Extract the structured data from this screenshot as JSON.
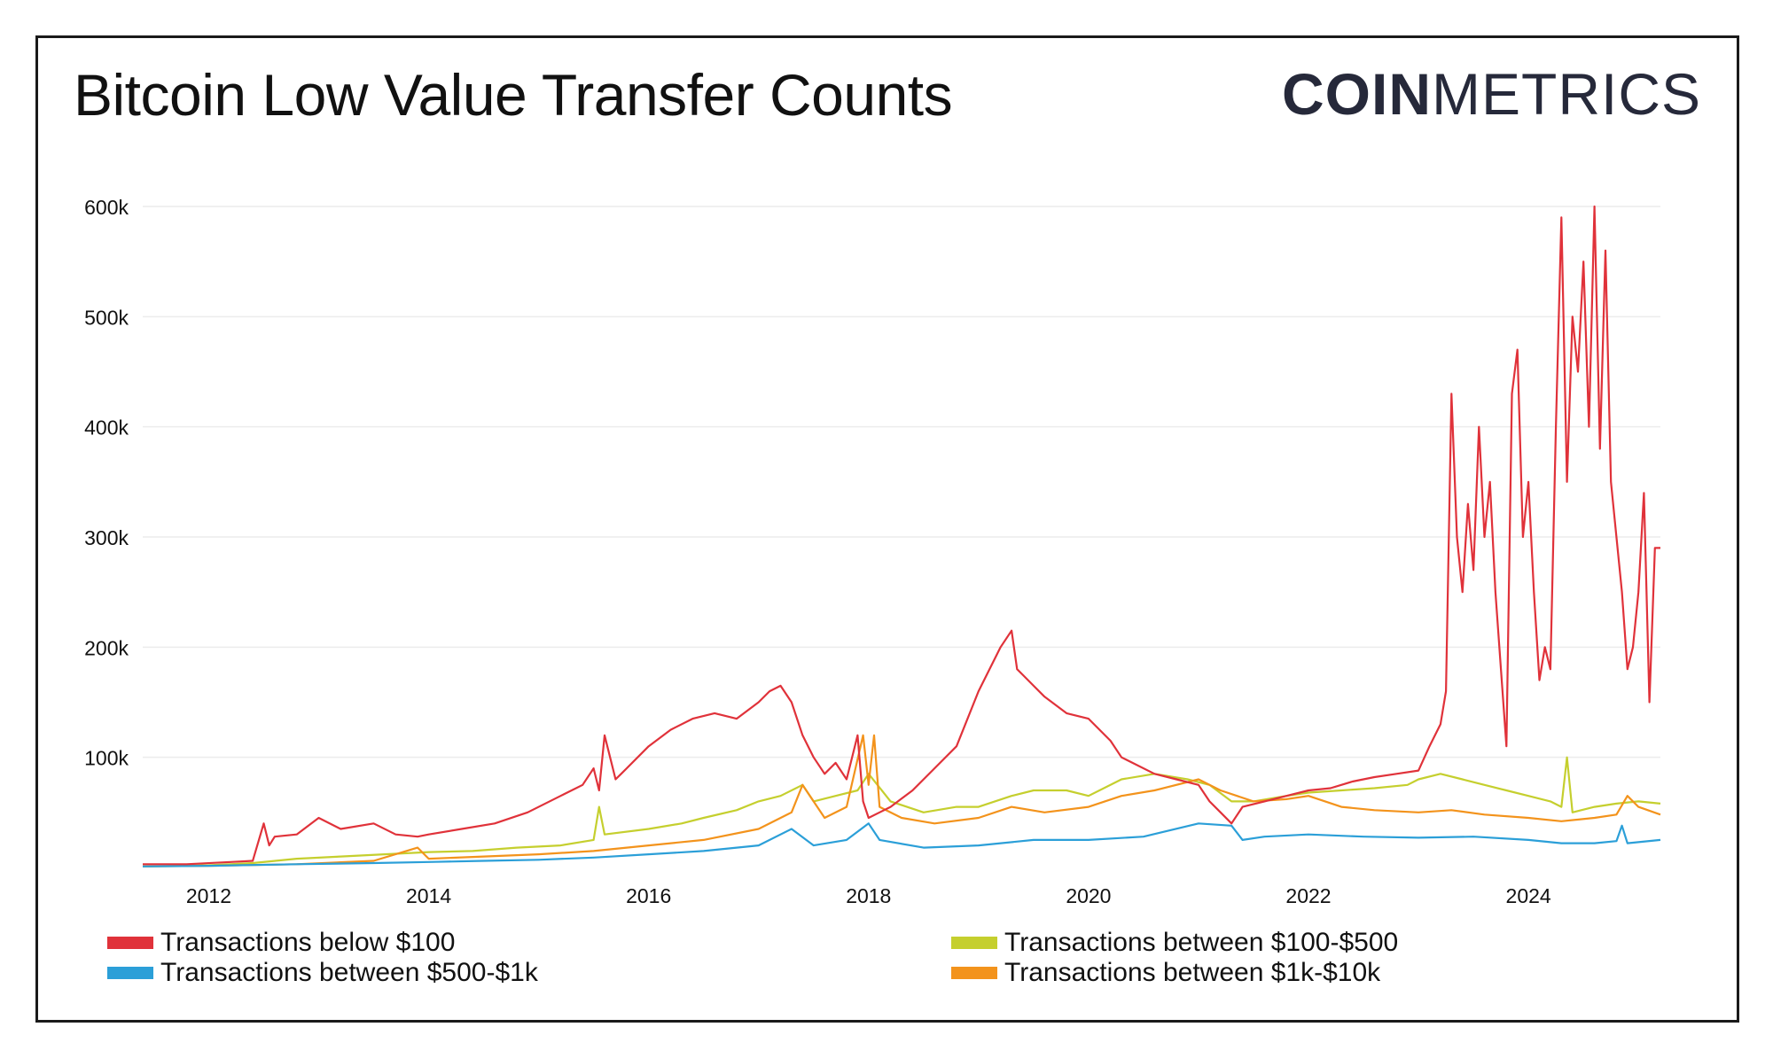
{
  "title": "Bitcoin Low Value Transfer Counts",
  "logo": {
    "bold": "COIN",
    "light": "METRICS"
  },
  "colors": {
    "red": "#e0323a",
    "yellow": "#c5cf2e",
    "blue": "#2b9fd8",
    "orange": "#f3931c",
    "grid": "#ececec",
    "axis_text": "#111111"
  },
  "chart_data": {
    "type": "line",
    "title": "Bitcoin Low Value Transfer Counts",
    "xlabel": "",
    "ylabel": "",
    "xlim": [
      2011.4,
      2025.2
    ],
    "ylim": [
      0,
      600000
    ],
    "grid": true,
    "legend_position": "bottom",
    "x_ticks": [
      "2012",
      "2014",
      "2016",
      "2018",
      "2020",
      "2022",
      "2024"
    ],
    "y_ticks": [
      "100k",
      "200k",
      "300k",
      "400k",
      "500k",
      "600k"
    ],
    "series": [
      {
        "name": "Transactions below $100",
        "color": "#e0323a",
        "x": [
          2011.4,
          2011.8,
          2012.2,
          2012.4,
          2012.5,
          2012.55,
          2012.6,
          2012.8,
          2013.0,
          2013.2,
          2013.5,
          2013.7,
          2013.9,
          2014.0,
          2014.3,
          2014.6,
          2014.9,
          2015.2,
          2015.4,
          2015.5,
          2015.55,
          2015.6,
          2015.7,
          2015.75,
          2015.8,
          2016.0,
          2016.2,
          2016.4,
          2016.6,
          2016.8,
          2017.0,
          2017.1,
          2017.2,
          2017.3,
          2017.4,
          2017.5,
          2017.6,
          2017.7,
          2017.8,
          2017.9,
          2017.95,
          2018.0,
          2018.1,
          2018.2,
          2018.4,
          2018.6,
          2018.8,
          2019.0,
          2019.2,
          2019.3,
          2019.35,
          2019.4,
          2019.5,
          2019.6,
          2019.8,
          2020.0,
          2020.2,
          2020.3,
          2020.4,
          2020.6,
          2020.8,
          2021.0,
          2021.1,
          2021.2,
          2021.3,
          2021.4,
          2021.6,
          2021.8,
          2022.0,
          2022.2,
          2022.4,
          2022.6,
          2022.8,
          2023.0,
          2023.1,
          2023.2,
          2023.25,
          2023.3,
          2023.35,
          2023.4,
          2023.45,
          2023.5,
          2023.55,
          2023.6,
          2023.65,
          2023.7,
          2023.75,
          2023.8,
          2023.85,
          2023.9,
          2023.95,
          2024.0,
          2024.05,
          2024.1,
          2024.15,
          2024.2,
          2024.25,
          2024.3,
          2024.35,
          2024.4,
          2024.45,
          2024.5,
          2024.55,
          2024.6,
          2024.65,
          2024.7,
          2024.75,
          2024.8,
          2024.85,
          2024.9,
          2024.95,
          2025.0,
          2025.05,
          2025.1,
          2025.15,
          2025.2
        ],
        "values": [
          3000,
          3000,
          5000,
          6000,
          40000,
          20000,
          28000,
          30000,
          45000,
          35000,
          40000,
          30000,
          28000,
          30000,
          35000,
          40000,
          50000,
          65000,
          75000,
          90000,
          70000,
          120000,
          80000,
          85000,
          90000,
          110000,
          125000,
          135000,
          140000,
          135000,
          150000,
          160000,
          165000,
          150000,
          120000,
          100000,
          85000,
          95000,
          80000,
          120000,
          60000,
          45000,
          50000,
          55000,
          70000,
          90000,
          110000,
          160000,
          200000,
          215000,
          180000,
          175000,
          165000,
          155000,
          140000,
          135000,
          115000,
          100000,
          95000,
          85000,
          80000,
          75000,
          60000,
          50000,
          40000,
          55000,
          60000,
          65000,
          70000,
          72000,
          78000,
          82000,
          85000,
          88000,
          110000,
          130000,
          160000,
          430000,
          300000,
          250000,
          330000,
          270000,
          400000,
          300000,
          350000,
          250000,
          180000,
          110000,
          430000,
          470000,
          300000,
          350000,
          250000,
          170000,
          200000,
          180000,
          400000,
          590000,
          350000,
          500000,
          450000,
          550000,
          400000,
          600000,
          380000,
          560000,
          350000,
          300000,
          250000,
          180000,
          200000,
          250000,
          340000,
          150000,
          290000,
          290000
        ]
      },
      {
        "name": "Transactions between $100-$500",
        "color": "#c5cf2e",
        "x": [
          2011.4,
          2012.0,
          2012.4,
          2012.8,
          2013.2,
          2013.6,
          2014.0,
          2014.4,
          2014.8,
          2015.2,
          2015.5,
          2015.55,
          2015.6,
          2016.0,
          2016.3,
          2016.5,
          2016.8,
          2017.0,
          2017.2,
          2017.4,
          2017.5,
          2017.7,
          2017.9,
          2018.0,
          2018.2,
          2018.5,
          2018.8,
          2019.0,
          2019.3,
          2019.5,
          2019.8,
          2020.0,
          2020.3,
          2020.6,
          2020.9,
          2021.1,
          2021.3,
          2021.5,
          2021.8,
          2022.0,
          2022.3,
          2022.6,
          2022.9,
          2023.0,
          2023.2,
          2023.4,
          2023.6,
          2023.8,
          2024.0,
          2024.2,
          2024.3,
          2024.35,
          2024.4,
          2024.6,
          2024.8,
          2025.0,
          2025.2
        ],
        "values": [
          1000,
          2000,
          4000,
          8000,
          10000,
          12000,
          14000,
          15000,
          18000,
          20000,
          25000,
          55000,
          30000,
          35000,
          40000,
          45000,
          52000,
          60000,
          65000,
          75000,
          60000,
          65000,
          70000,
          85000,
          60000,
          50000,
          55000,
          55000,
          65000,
          70000,
          70000,
          65000,
          80000,
          85000,
          80000,
          75000,
          60000,
          60000,
          65000,
          68000,
          70000,
          72000,
          75000,
          80000,
          85000,
          80000,
          75000,
          70000,
          65000,
          60000,
          55000,
          100000,
          50000,
          55000,
          58000,
          60000,
          58000
        ]
      },
      {
        "name": "Transactions between $500-$1k",
        "color": "#2b9fd8",
        "x": [
          2011.4,
          2012.0,
          2012.8,
          2013.5,
          2014.0,
          2014.5,
          2015.0,
          2015.5,
          2016.0,
          2016.5,
          2017.0,
          2017.3,
          2017.5,
          2017.8,
          2018.0,
          2018.1,
          2018.5,
          2019.0,
          2019.5,
          2020.0,
          2020.5,
          2021.0,
          2021.3,
          2021.4,
          2021.6,
          2022.0,
          2022.5,
          2023.0,
          2023.5,
          2024.0,
          2024.3,
          2024.6,
          2024.8,
          2024.85,
          2024.9,
          2025.2
        ],
        "values": [
          1000,
          1500,
          3000,
          4000,
          5000,
          6000,
          7000,
          9000,
          12000,
          15000,
          20000,
          35000,
          20000,
          25000,
          40000,
          25000,
          18000,
          20000,
          25000,
          25000,
          28000,
          40000,
          38000,
          25000,
          28000,
          30000,
          28000,
          27000,
          28000,
          25000,
          22000,
          22000,
          24000,
          38000,
          22000,
          25000
        ]
      },
      {
        "name": "Transactions between $1k-$10k",
        "color": "#f3931c",
        "x": [
          2011.4,
          2012.0,
          2012.8,
          2013.5,
          2013.9,
          2014.0,
          2014.5,
          2015.0,
          2015.5,
          2016.0,
          2016.5,
          2017.0,
          2017.3,
          2017.4,
          2017.6,
          2017.8,
          2017.95,
          2018.0,
          2018.05,
          2018.1,
          2018.3,
          2018.6,
          2019.0,
          2019.3,
          2019.6,
          2020.0,
          2020.3,
          2020.6,
          2021.0,
          2021.2,
          2021.5,
          2021.8,
          2022.0,
          2022.3,
          2022.6,
          2023.0,
          2023.3,
          2023.6,
          2024.0,
          2024.3,
          2024.6,
          2024.8,
          2024.9,
          2025.0,
          2025.2
        ],
        "values": [
          1000,
          1500,
          3000,
          6000,
          18000,
          8000,
          10000,
          12000,
          15000,
          20000,
          25000,
          35000,
          50000,
          75000,
          45000,
          55000,
          120000,
          75000,
          120000,
          55000,
          45000,
          40000,
          45000,
          55000,
          50000,
          55000,
          65000,
          70000,
          80000,
          70000,
          60000,
          62000,
          65000,
          55000,
          52000,
          50000,
          52000,
          48000,
          45000,
          42000,
          45000,
          48000,
          65000,
          55000,
          48000
        ]
      }
    ]
  }
}
